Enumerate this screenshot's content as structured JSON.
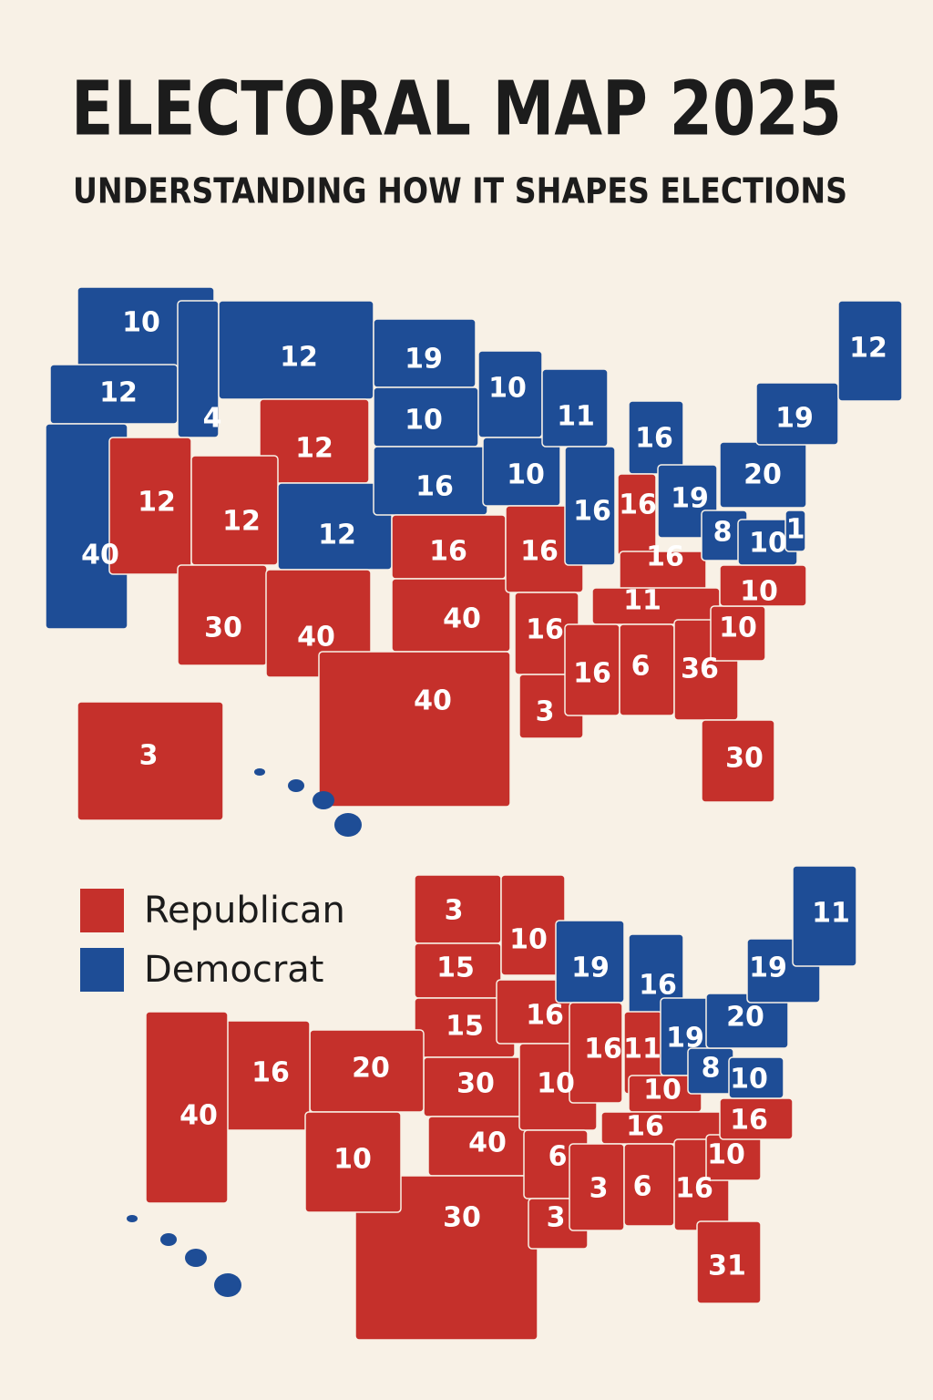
{
  "header": {
    "title": "ELECTORAL MAP 2025",
    "subtitle": "UNDERSTANDING HOW IT SHAPES ELECTIONS"
  },
  "legend": [
    {
      "name": "Republican",
      "color": "#c5302b"
    },
    {
      "name": "Democrat",
      "color": "#1e4d96"
    }
  ],
  "maps": [
    {
      "states": [
        {
          "value": 10,
          "color": "#1e4d96"
        },
        {
          "value": 12,
          "color": "#1e4d96"
        },
        {
          "value": 40,
          "color": "#1e4d96"
        },
        {
          "value": 4,
          "color": "#1e4d96"
        },
        {
          "value": 12,
          "color": "#1e4d96"
        },
        {
          "value": 12,
          "color": "#c5302b"
        },
        {
          "value": 12,
          "color": "#c5302b"
        },
        {
          "value": 12,
          "color": "#c5302b"
        },
        {
          "value": 12,
          "color": "#1e4d96"
        },
        {
          "value": 30,
          "color": "#c5302b"
        },
        {
          "value": 40,
          "color": "#c5302b"
        },
        {
          "value": 19,
          "color": "#1e4d96"
        },
        {
          "value": 10,
          "color": "#1e4d96"
        },
        {
          "value": 16,
          "color": "#1e4d96"
        },
        {
          "value": 16,
          "color": "#c5302b"
        },
        {
          "value": 40,
          "color": "#c5302b"
        },
        {
          "value": 40,
          "color": "#c5302b"
        },
        {
          "value": 10,
          "color": "#1e4d96"
        },
        {
          "value": 10,
          "color": "#1e4d96"
        },
        {
          "value": 16,
          "color": "#c5302b"
        },
        {
          "value": 16,
          "color": "#c5302b"
        },
        {
          "value": 3,
          "color": "#c5302b"
        },
        {
          "value": 11,
          "color": "#1e4d96"
        },
        {
          "value": 16,
          "color": "#1e4d96"
        },
        {
          "value": 16,
          "color": "#1e4d96"
        },
        {
          "value": 16,
          "color": "#c5302b"
        },
        {
          "value": 19,
          "color": "#1e4d96"
        },
        {
          "value": 16,
          "color": "#c5302b"
        },
        {
          "value": 11,
          "color": "#c5302b"
        },
        {
          "value": 16,
          "color": "#c5302b"
        },
        {
          "value": 6,
          "color": "#c5302b"
        },
        {
          "value": 36,
          "color": "#c5302b"
        },
        {
          "value": 30,
          "color": "#c5302b"
        },
        {
          "value": 10,
          "color": "#c5302b"
        },
        {
          "value": 10,
          "color": "#c5302b"
        },
        {
          "value": 8,
          "color": "#1e4d96"
        },
        {
          "value": 10,
          "color": "#1e4d96"
        },
        {
          "value": 1,
          "color": "#1e4d96"
        },
        {
          "value": 20,
          "color": "#1e4d96"
        },
        {
          "value": 19,
          "color": "#1e4d96"
        },
        {
          "value": 12,
          "color": "#1e4d96"
        },
        {
          "value": 3,
          "color": "#c5302b"
        }
      ]
    },
    {
      "states": [
        {
          "value": 3,
          "color": "#c5302b"
        },
        {
          "value": 15,
          "color": "#c5302b"
        },
        {
          "value": 15,
          "color": "#c5302b"
        },
        {
          "value": 30,
          "color": "#c5302b"
        },
        {
          "value": 40,
          "color": "#c5302b"
        },
        {
          "value": 30,
          "color": "#c5302b"
        },
        {
          "value": 20,
          "color": "#c5302b"
        },
        {
          "value": 16,
          "color": "#c5302b"
        },
        {
          "value": 40,
          "color": "#c5302b"
        },
        {
          "value": 10,
          "color": "#c5302b"
        },
        {
          "value": 10,
          "color": "#c5302b"
        },
        {
          "value": 16,
          "color": "#c5302b"
        },
        {
          "value": 10,
          "color": "#c5302b"
        },
        {
          "value": 6,
          "color": "#c5302b"
        },
        {
          "value": 3,
          "color": "#c5302b"
        },
        {
          "value": 19,
          "color": "#1e4d96"
        },
        {
          "value": 16,
          "color": "#1e4d96"
        },
        {
          "value": 16,
          "color": "#c5302b"
        },
        {
          "value": 11,
          "color": "#c5302b"
        },
        {
          "value": 19,
          "color": "#1e4d96"
        },
        {
          "value": 10,
          "color": "#c5302b"
        },
        {
          "value": 16,
          "color": "#c5302b"
        },
        {
          "value": 3,
          "color": "#c5302b"
        },
        {
          "value": 6,
          "color": "#c5302b"
        },
        {
          "value": 16,
          "color": "#c5302b"
        },
        {
          "value": 31,
          "color": "#c5302b"
        },
        {
          "value": 10,
          "color": "#c5302b"
        },
        {
          "value": 16,
          "color": "#c5302b"
        },
        {
          "value": 8,
          "color": "#1e4d96"
        },
        {
          "value": 10,
          "color": "#1e4d96"
        },
        {
          "value": 20,
          "color": "#1e4d96"
        },
        {
          "value": 19,
          "color": "#1e4d96"
        },
        {
          "value": 11,
          "color": "#1e4d96"
        }
      ]
    }
  ]
}
